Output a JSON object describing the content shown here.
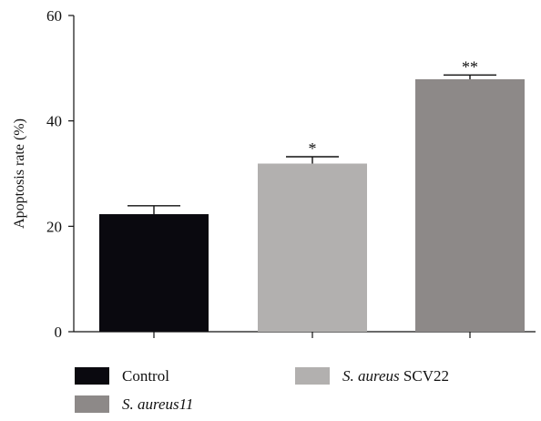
{
  "chart_data": {
    "type": "bar",
    "title": "",
    "xlabel": "",
    "ylabel": "Apoptosis rate (%)",
    "ylim": [
      0,
      60
    ],
    "yticks": [
      0,
      20,
      40,
      60
    ],
    "categories": [
      "Control",
      "S. aureus SCV22",
      "S. aureus11"
    ],
    "values": [
      22.3,
      31.9,
      47.9
    ],
    "errors": [
      1.6,
      1.3,
      0.8
    ],
    "significance": [
      "",
      "*",
      "**"
    ],
    "colors": [
      "#0a090f",
      "#b2b0af",
      "#8d8988"
    ],
    "legend": [
      {
        "italic": "",
        "plain": "Control",
        "color": "#0a090f"
      },
      {
        "italic": "S. aureus",
        "plain": " SCV22",
        "color": "#b2b0af"
      },
      {
        "italic": "S. aureus11",
        "plain": "",
        "color": "#8d8988"
      }
    ],
    "legend_position": "bottom",
    "grid": false
  }
}
